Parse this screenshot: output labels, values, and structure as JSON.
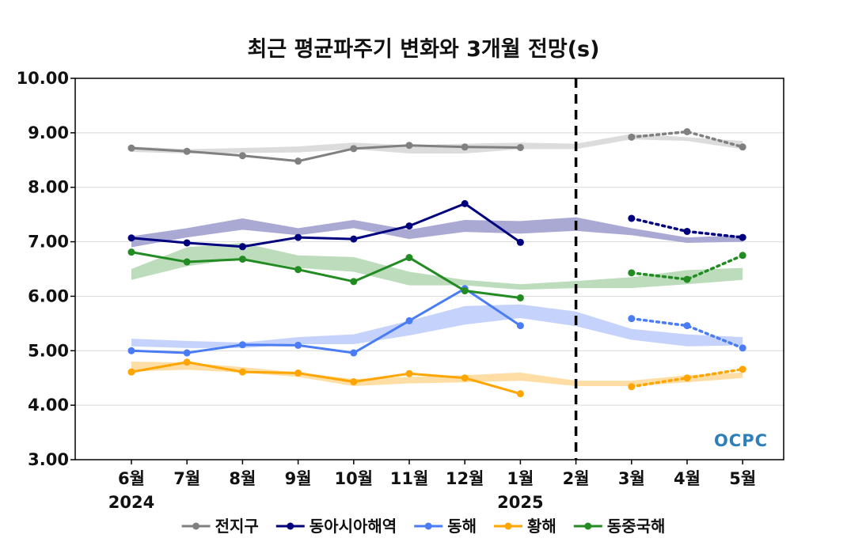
{
  "chart_data": {
    "type": "line",
    "title": "최근 평균파주기 변화와 3개월 전망(s)",
    "ylim": [
      3,
      10
    ],
    "yticks": [
      "3.00",
      "4.00",
      "5.00",
      "6.00",
      "7.00",
      "8.00",
      "9.00",
      "10.00"
    ],
    "categories": [
      "6월",
      "7월",
      "8월",
      "9월",
      "10월",
      "11월",
      "12월",
      "1월",
      "2월",
      "3월",
      "4월",
      "5월"
    ],
    "year_labels": [
      {
        "category": "6월",
        "label": "2024"
      },
      {
        "category": "1월",
        "label": "2025"
      }
    ],
    "forecast_divider_category": "2월",
    "grid": "horizontal",
    "legend_position": "bottom",
    "watermark": "OCPC",
    "series": [
      {
        "name": "전지구",
        "color": "#808080",
        "band_color": "#dcdcdc",
        "observed": [
          8.72,
          8.66,
          8.58,
          8.48,
          8.71,
          8.77,
          8.74,
          8.73,
          null,
          null,
          null,
          null
        ],
        "forecast": [
          null,
          null,
          null,
          null,
          null,
          null,
          null,
          null,
          null,
          8.92,
          9.02,
          8.74
        ],
        "band_low": [
          8.65,
          8.62,
          8.63,
          8.64,
          8.7,
          8.62,
          8.62,
          8.7,
          8.7,
          8.88,
          8.85,
          8.7
        ],
        "band_high": [
          8.75,
          8.7,
          8.72,
          8.75,
          8.82,
          8.77,
          8.8,
          8.82,
          8.8,
          8.98,
          8.92,
          8.85
        ]
      },
      {
        "name": "동아시아해역",
        "color": "#00007f",
        "band_color": "#a9a9d4",
        "observed": [
          7.07,
          6.98,
          6.91,
          7.08,
          7.05,
          7.29,
          7.7,
          6.99,
          null,
          null,
          null,
          null
        ],
        "forecast": [
          null,
          null,
          null,
          null,
          null,
          null,
          null,
          null,
          null,
          7.43,
          7.19,
          7.08
        ],
        "band_low": [
          6.9,
          7.08,
          7.22,
          7.12,
          7.25,
          7.05,
          7.18,
          7.15,
          7.2,
          7.12,
          6.98,
          7.0
        ],
        "band_high": [
          7.1,
          7.25,
          7.43,
          7.25,
          7.4,
          7.22,
          7.4,
          7.38,
          7.45,
          7.25,
          7.08,
          7.12
        ]
      },
      {
        "name": "동해",
        "color": "#4a7cf5",
        "band_color": "#c5d2fb",
        "observed": [
          5.0,
          4.96,
          5.11,
          5.1,
          4.96,
          5.55,
          6.14,
          5.46,
          null,
          null,
          null,
          null
        ],
        "forecast": [
          null,
          null,
          null,
          null,
          null,
          null,
          null,
          null,
          null,
          5.59,
          5.46,
          5.05
        ],
        "band_low": [
          5.08,
          5.05,
          5.05,
          5.12,
          5.12,
          5.28,
          5.48,
          5.6,
          5.45,
          5.2,
          5.08,
          5.1
        ],
        "band_high": [
          5.22,
          5.18,
          5.15,
          5.25,
          5.3,
          5.55,
          5.82,
          5.85,
          5.72,
          5.4,
          5.3,
          5.25
        ]
      },
      {
        "name": "황해",
        "color": "#ffa500",
        "band_color": "#ffdea6",
        "observed": [
          4.61,
          4.79,
          4.61,
          4.59,
          4.43,
          4.58,
          4.5,
          4.21,
          null,
          null,
          null,
          null
        ],
        "forecast": [
          null,
          null,
          null,
          null,
          null,
          null,
          null,
          null,
          null,
          4.34,
          4.5,
          4.66
        ],
        "band_low": [
          4.62,
          4.65,
          4.6,
          4.52,
          4.35,
          4.4,
          4.42,
          4.45,
          4.35,
          4.35,
          4.42,
          4.5
        ],
        "band_high": [
          4.8,
          4.78,
          4.7,
          4.6,
          4.48,
          4.52,
          4.55,
          4.6,
          4.45,
          4.45,
          4.55,
          4.6
        ]
      },
      {
        "name": "동중국해",
        "color": "#228b22",
        "band_color": "#bcdcbc",
        "observed": [
          6.81,
          6.63,
          6.68,
          6.49,
          6.27,
          6.71,
          6.1,
          5.97,
          null,
          null,
          null,
          null
        ],
        "forecast": [
          null,
          null,
          null,
          null,
          null,
          null,
          null,
          null,
          null,
          6.43,
          6.31,
          6.75
        ],
        "band_low": [
          6.3,
          6.55,
          6.7,
          6.52,
          6.45,
          6.2,
          6.2,
          6.12,
          6.15,
          6.15,
          6.22,
          6.3
        ],
        "band_high": [
          6.5,
          6.9,
          6.98,
          6.75,
          6.72,
          6.45,
          6.3,
          6.22,
          6.28,
          6.35,
          6.48,
          6.52
        ]
      }
    ]
  }
}
